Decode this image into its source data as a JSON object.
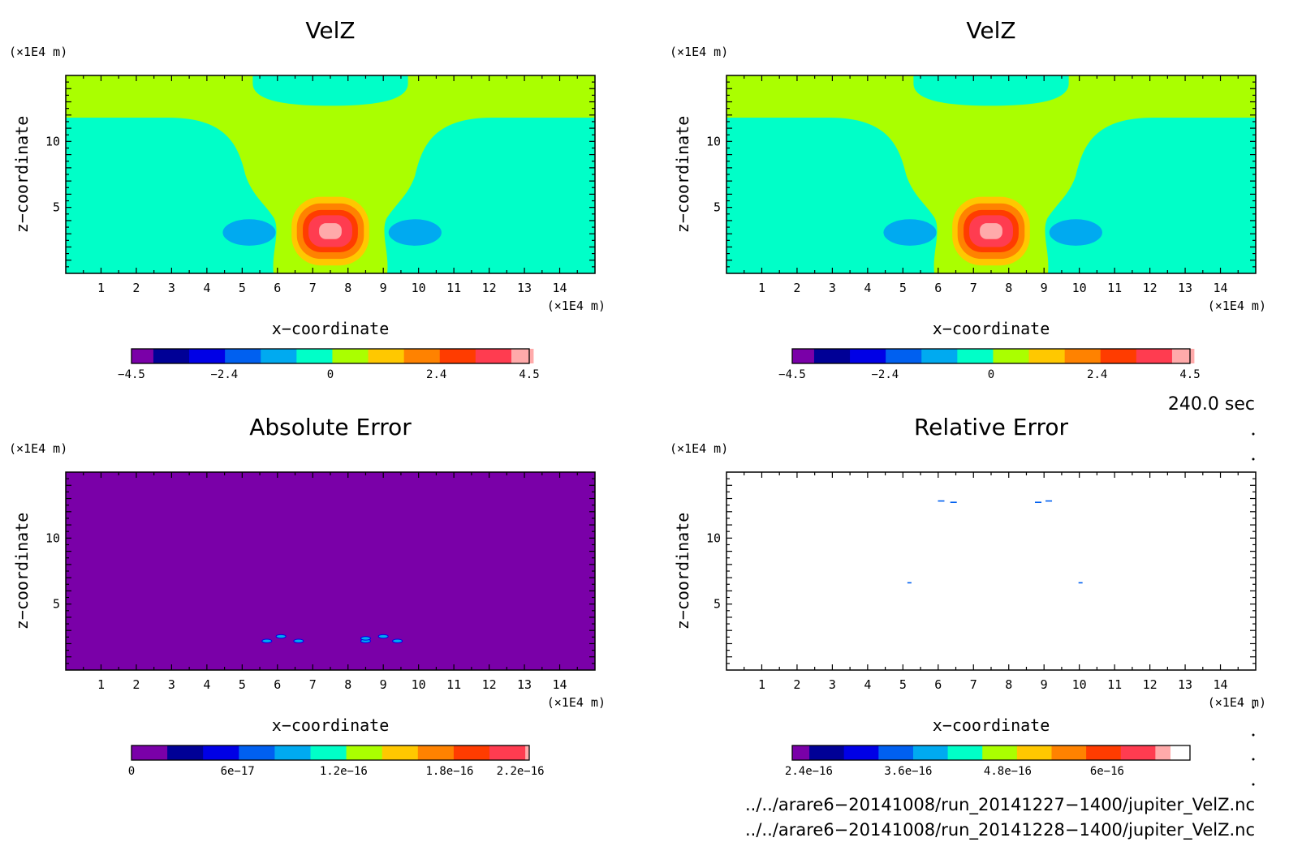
{
  "chart_data": [
    {
      "type": "heatmap",
      "id": "velz_a",
      "title": "VelZ",
      "xlabel": "x−coordinate",
      "ylabel": "z−coordinate",
      "x_unit": "(×1E4 m)",
      "y_unit": "(×1E4 m)",
      "xlim": [
        0,
        15
      ],
      "ylim": [
        0,
        15
      ],
      "x_ticks": [
        "1",
        "2",
        "3",
        "4",
        "5",
        "6",
        "7",
        "8",
        "9",
        "10",
        "11",
        "12",
        "13",
        "14"
      ],
      "y_ticks": [
        "5",
        "10"
      ],
      "field": "velz",
      "colorbar": {
        "colors": [
          "#7a00a8",
          "#000096",
          "#0000e6",
          "#0060f0",
          "#00aaf0",
          "#00ffc8",
          "#aaff00",
          "#ffc800",
          "#ff8200",
          "#ff3c00",
          "#ff3c50",
          "#ffaaaa"
        ],
        "tick_labels": [
          "−4.5",
          "−2.4",
          "0",
          "2.4",
          "4.5"
        ],
        "tick_values": [
          -4.5,
          -2.4,
          0,
          2.4,
          4.5
        ],
        "range": [
          -4.5,
          4.5
        ]
      }
    },
    {
      "type": "heatmap",
      "id": "velz_b",
      "title": "VelZ",
      "xlabel": "x−coordinate",
      "ylabel": "z−coordinate",
      "x_unit": "(×1E4 m)",
      "y_unit": "(×1E4 m)",
      "xlim": [
        0,
        15
      ],
      "ylim": [
        0,
        15
      ],
      "x_ticks": [
        "1",
        "2",
        "3",
        "4",
        "5",
        "6",
        "7",
        "8",
        "9",
        "10",
        "11",
        "12",
        "13",
        "14"
      ],
      "y_ticks": [
        "5",
        "10"
      ],
      "field": "velz",
      "colorbar": {
        "colors": [
          "#7a00a8",
          "#000096",
          "#0000e6",
          "#0060f0",
          "#00aaf0",
          "#00ffc8",
          "#aaff00",
          "#ffc800",
          "#ff8200",
          "#ff3c00",
          "#ff3c50",
          "#ffaaaa"
        ],
        "tick_labels": [
          "−4.5",
          "−2.4",
          "0",
          "2.4",
          "4.5"
        ],
        "tick_values": [
          -4.5,
          -2.4,
          0,
          2.4,
          4.5
        ],
        "range": [
          -4.5,
          4.5
        ]
      }
    },
    {
      "type": "heatmap",
      "id": "abs_err",
      "title": "Absolute Error",
      "xlabel": "x−coordinate",
      "ylabel": "z−coordinate",
      "x_unit": "(×1E4 m)",
      "y_unit": "(×1E4 m)",
      "xlim": [
        0,
        15
      ],
      "ylim": [
        0,
        15
      ],
      "x_ticks": [
        "1",
        "2",
        "3",
        "4",
        "5",
        "6",
        "7",
        "8",
        "9",
        "10",
        "11",
        "12",
        "13",
        "14"
      ],
      "y_ticks": [
        "5",
        "10"
      ],
      "field": "abs",
      "colorbar": {
        "colors": [
          "#7a00a8",
          "#000096",
          "#0000e6",
          "#0060f0",
          "#00aaf0",
          "#00ffc8",
          "#aaff00",
          "#ffc800",
          "#ff8200",
          "#ff3c00",
          "#ff3c50",
          "#ffaaaa"
        ],
        "tick_labels": [
          "0",
          "6e−17",
          "1.2e−16",
          "1.8e−16",
          "2.2e−16"
        ],
        "tick_values": [
          0,
          6e-17,
          1.2e-16,
          1.8e-16,
          2.2e-16
        ],
        "range": [
          0,
          2.25e-16
        ]
      }
    },
    {
      "type": "heatmap",
      "id": "rel_err",
      "title": "Relative Error",
      "xlabel": "x−coordinate",
      "ylabel": "z−coordinate",
      "x_unit": "(×1E4 m)",
      "y_unit": "(×1E4 m)",
      "xlim": [
        0,
        15
      ],
      "ylim": [
        0,
        15
      ],
      "x_ticks": [
        "1",
        "2",
        "3",
        "4",
        "5",
        "6",
        "7",
        "8",
        "9",
        "10",
        "11",
        "12",
        "13",
        "14"
      ],
      "y_ticks": [
        "5",
        "10"
      ],
      "field": "rel",
      "colorbar": {
        "colors": [
          "#7a00a8",
          "#000096",
          "#0000e6",
          "#0060f0",
          "#00aaf0",
          "#00ffc8",
          "#aaff00",
          "#ffc800",
          "#ff8200",
          "#ff3c00",
          "#ff3c50",
          "#ffaaaa"
        ],
        "tick_labels": [
          "2.4e−16",
          "3.6e−16",
          "4.8e−16",
          "6e−16"
        ],
        "tick_values": [
          2.4e-16,
          3.6e-16,
          4.8e-16,
          6e-16
        ],
        "range": [
          2.2e-16,
          7e-16
        ]
      }
    }
  ],
  "annotations": {
    "time_label": "240.0 sec",
    "file_1": "../../arare6−20141008/run_20141227−1400/jupiter_VelZ.nc",
    "file_2": "../../arare6−20141008/run_20141228−1400/jupiter_VelZ.nc"
  }
}
